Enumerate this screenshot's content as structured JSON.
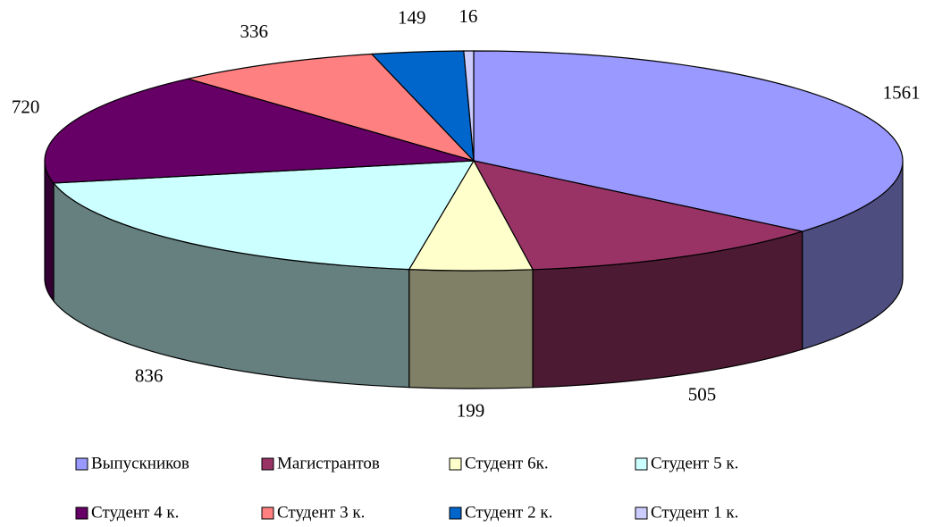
{
  "chart_data": {
    "type": "pie3d",
    "categories": [
      "Выпускников",
      "Магистрантов",
      "Студент 6к.",
      "Студент 5 к.",
      "Студент 4 к.",
      "Студент 3 к.",
      "Студент 2 к.",
      "Студент 1 к."
    ],
    "values": [
      1561,
      505,
      199,
      836,
      720,
      336,
      149,
      16
    ],
    "colors": [
      "#9999ff",
      "#993366",
      "#ffffcc",
      "#ccffff",
      "#660066",
      "#ff8080",
      "#0066cc",
      "#ccccff"
    ],
    "legend": "bottom"
  }
}
